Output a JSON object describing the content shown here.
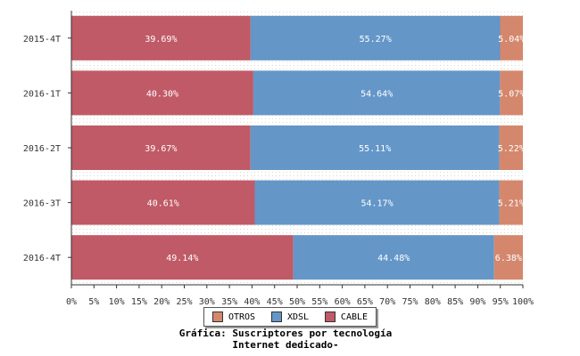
{
  "chart_data": {
    "type": "bar",
    "orientation": "horizontal",
    "stacked": true,
    "categories": [
      "2015-4T",
      "2016-1T",
      "2016-2T",
      "2016-3T",
      "2016-4T"
    ],
    "series": [
      {
        "name": "CABLE",
        "color": "#c05a66",
        "values": [
          39.69,
          40.3,
          39.67,
          40.61,
          49.14
        ],
        "labels": [
          "39.69%",
          "40.30%",
          "39.67%",
          "40.61%",
          "49.14%"
        ]
      },
      {
        "name": "XDSL",
        "color": "#6496c8",
        "values": [
          55.27,
          54.64,
          55.11,
          54.17,
          44.48
        ],
        "labels": [
          "55.27%",
          "54.64%",
          "55.11%",
          "54.17%",
          "44.48%"
        ]
      },
      {
        "name": "OTROS",
        "color": "#d4876c",
        "values": [
          5.04,
          5.07,
          5.22,
          5.21,
          6.38
        ],
        "labels": [
          "5.04%",
          "5.07%",
          "5.22%",
          "5.21%",
          "6.38%"
        ]
      }
    ],
    "xlim": [
      0,
      100
    ],
    "xticks": [
      0,
      5,
      10,
      15,
      20,
      25,
      30,
      35,
      40,
      45,
      50,
      55,
      60,
      65,
      70,
      75,
      80,
      85,
      90,
      95,
      100
    ],
    "xtick_labels": [
      "0%",
      "5%",
      "10%",
      "15%",
      "20%",
      "25%",
      "30%",
      "35%",
      "40%",
      "45%",
      "50%",
      "55%",
      "60%",
      "65%",
      "70%",
      "75%",
      "80%",
      "85%",
      "90%",
      "95%",
      "100%"
    ],
    "legend_position": "bottom-center",
    "grid": true
  },
  "legend": {
    "items": [
      {
        "name": "OTROS",
        "color": "#d4876c"
      },
      {
        "name": "XDSL",
        "color": "#6496c8"
      },
      {
        "name": "CABLE",
        "color": "#c05a66"
      }
    ]
  },
  "caption": {
    "line1": "Gráfica: Suscriptores por tecnología",
    "line2": "Internet dedicado-"
  }
}
